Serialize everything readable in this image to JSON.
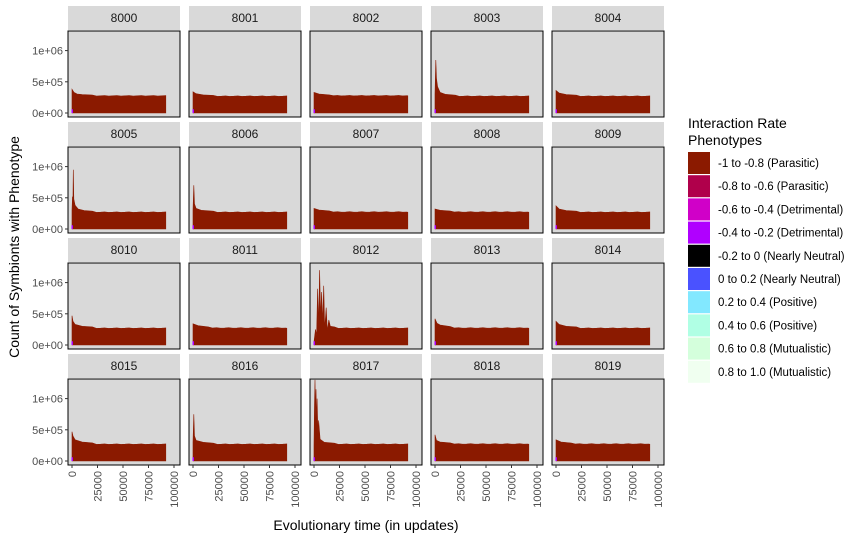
{
  "chart_data": {
    "type": "area",
    "xlabel": "Evolutionary time (in updates)",
    "ylabel": "Count of Symbionts with Phenotype",
    "xlim": [
      0,
      100000
    ],
    "ylim": [
      0,
      1250000
    ],
    "x_ticks": [
      0,
      25000,
      50000,
      75000,
      100000
    ],
    "x_tick_labels": [
      "0",
      "25000",
      "50000",
      "75000",
      "100000"
    ],
    "y_ticks": [
      0,
      500000,
      1000000
    ],
    "y_tick_labels": [
      "0e+00",
      "5e+05",
      "1e+06"
    ],
    "panel_background": "#d9d9d9",
    "strip_background": "#d9d9d9",
    "legend": {
      "title": "Interaction Rate\n Phenotypes",
      "position": "right",
      "entries": [
        {
          "label": "-1 to -0.8 (Parasitic)",
          "color": "#8b1a00"
        },
        {
          "label": "-0.8 to -0.6 (Parasitic)",
          "color": "#b0004b"
        },
        {
          "label": "-0.6 to -0.4 (Detrimental)",
          "color": "#d000c8"
        },
        {
          "label": "-0.4 to -0.2 (Detrimental)",
          "color": "#b000ff"
        },
        {
          "label": "-0.2 to 0 (Nearly Neutral)",
          "color": "#000000"
        },
        {
          "label": "0 to 0.2 (Nearly Neutral)",
          "color": "#4a52ff"
        },
        {
          "label": "0.2 to 0.4 (Positive)",
          "color": "#82e8ff"
        },
        {
          "label": "0.4 to 0.6 (Positive)",
          "color": "#b0ffe4"
        },
        {
          "label": "0.6 to 0.8 (Mutualistic)",
          "color": "#d4ffdc"
        },
        {
          "label": "0.8 to 1.0 (Mutualistic)",
          "color": "#f0fff0"
        }
      ]
    },
    "series_name": "-1 to -0.8 (Parasitic)",
    "panels": [
      {
        "title": "8000",
        "plateau": 275000,
        "early": [
          [
            0,
            380000
          ],
          [
            2000,
            330000
          ],
          [
            5000,
            305000
          ],
          [
            10000,
            295000
          ],
          [
            20000,
            288000
          ]
        ]
      },
      {
        "title": "8001",
        "plateau": 270000,
        "early": [
          [
            0,
            340000
          ],
          [
            3000,
            310000
          ],
          [
            10000,
            290000
          ],
          [
            20000,
            282000
          ]
        ]
      },
      {
        "title": "8002",
        "plateau": 275000,
        "early": [
          [
            0,
            330000
          ],
          [
            5000,
            305000
          ],
          [
            15000,
            290000
          ]
        ]
      },
      {
        "title": "8003",
        "plateau": 270000,
        "early": [
          [
            0,
            300000
          ],
          [
            800,
            850000
          ],
          [
            1500,
            550000
          ],
          [
            2500,
            420000
          ],
          [
            5000,
            330000
          ],
          [
            10000,
            300000
          ],
          [
            20000,
            285000
          ]
        ]
      },
      {
        "title": "8004",
        "plateau": 270000,
        "early": [
          [
            0,
            360000
          ],
          [
            3000,
            320000
          ],
          [
            10000,
            295000
          ],
          [
            20000,
            285000
          ]
        ]
      },
      {
        "title": "8005",
        "plateau": 270000,
        "early": [
          [
            0,
            300000
          ],
          [
            500,
            520000
          ],
          [
            900,
            380000
          ],
          [
            1300,
            950000
          ],
          [
            1800,
            480000
          ],
          [
            3000,
            380000
          ],
          [
            6000,
            320000
          ],
          [
            12000,
            295000
          ],
          [
            20000,
            285000
          ]
        ]
      },
      {
        "title": "8006",
        "plateau": 270000,
        "early": [
          [
            0,
            300000
          ],
          [
            800,
            700000
          ],
          [
            1500,
            400000
          ],
          [
            3000,
            330000
          ],
          [
            8000,
            300000
          ],
          [
            20000,
            285000
          ]
        ]
      },
      {
        "title": "8007",
        "plateau": 270000,
        "early": [
          [
            0,
            330000
          ],
          [
            5000,
            305000
          ],
          [
            15000,
            290000
          ]
        ]
      },
      {
        "title": "8008",
        "plateau": 270000,
        "early": [
          [
            0,
            320000
          ],
          [
            5000,
            300000
          ],
          [
            15000,
            288000
          ]
        ]
      },
      {
        "title": "8009",
        "plateau": 270000,
        "early": [
          [
            0,
            370000
          ],
          [
            3000,
            320000
          ],
          [
            10000,
            295000
          ],
          [
            20000,
            285000
          ]
        ]
      },
      {
        "title": "8010",
        "plateau": 270000,
        "early": [
          [
            0,
            470000
          ],
          [
            1000,
            380000
          ],
          [
            3000,
            330000
          ],
          [
            10000,
            300000
          ],
          [
            20000,
            290000
          ]
        ]
      },
      {
        "title": "8011",
        "plateau": 270000,
        "early": [
          [
            0,
            340000
          ],
          [
            5000,
            310000
          ],
          [
            15000,
            290000
          ]
        ]
      },
      {
        "title": "8012",
        "plateau": 270000,
        "early": [
          [
            0,
            50000
          ],
          [
            1500,
            250000
          ],
          [
            2500,
            150000
          ],
          [
            3500,
            900000
          ],
          [
            4500,
            300000
          ],
          [
            5500,
            1200000
          ],
          [
            6500,
            450000
          ],
          [
            7500,
            850000
          ],
          [
            8500,
            350000
          ],
          [
            9500,
            950000
          ],
          [
            10500,
            250000
          ],
          [
            12000,
            600000
          ],
          [
            13000,
            220000
          ],
          [
            14500,
            400000
          ],
          [
            16000,
            300000
          ],
          [
            20000,
            290000
          ]
        ]
      },
      {
        "title": "8013",
        "plateau": 270000,
        "early": [
          [
            0,
            420000
          ],
          [
            2000,
            350000
          ],
          [
            5000,
            320000
          ],
          [
            15000,
            295000
          ]
        ]
      },
      {
        "title": "8014",
        "plateau": 270000,
        "early": [
          [
            0,
            380000
          ],
          [
            3000,
            330000
          ],
          [
            10000,
            300000
          ],
          [
            20000,
            290000
          ]
        ]
      },
      {
        "title": "8015",
        "plateau": 270000,
        "early": [
          [
            0,
            470000
          ],
          [
            1000,
            400000
          ],
          [
            3000,
            340000
          ],
          [
            10000,
            305000
          ],
          [
            20000,
            290000
          ]
        ]
      },
      {
        "title": "8016",
        "plateau": 270000,
        "early": [
          [
            0,
            300000
          ],
          [
            800,
            750000
          ],
          [
            1500,
            400000
          ],
          [
            3000,
            330000
          ],
          [
            10000,
            300000
          ],
          [
            20000,
            285000
          ]
        ]
      },
      {
        "title": "8017",
        "plateau": 270000,
        "early": [
          [
            0,
            250000
          ],
          [
            500,
            900000
          ],
          [
            1000,
            1300000
          ],
          [
            1500,
            700000
          ],
          [
            2000,
            1150000
          ],
          [
            2500,
            600000
          ],
          [
            3000,
            1000000
          ],
          [
            3800,
            450000
          ],
          [
            4500,
            650000
          ],
          [
            6000,
            350000
          ],
          [
            10000,
            300000
          ],
          [
            20000,
            285000
          ]
        ]
      },
      {
        "title": "8018",
        "plateau": 270000,
        "early": [
          [
            0,
            420000
          ],
          [
            1500,
            330000
          ],
          [
            5000,
            305000
          ],
          [
            15000,
            290000
          ]
        ]
      },
      {
        "title": "8019",
        "plateau": 270000,
        "early": [
          [
            0,
            340000
          ],
          [
            5000,
            305000
          ],
          [
            15000,
            288000
          ]
        ]
      }
    ]
  }
}
